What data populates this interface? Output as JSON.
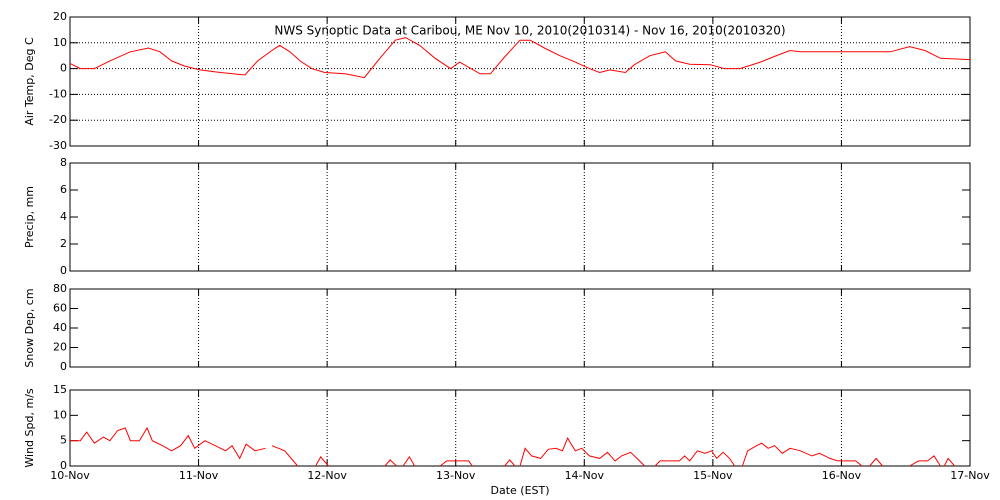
{
  "chart_data": [
    {
      "type": "line",
      "title": "NWS Synoptic Data at Caribou, ME    Nov 10, 2010(2010314) - Nov 16, 2010(2010320)",
      "ylabel": "Air Temp, Deg C",
      "xlim": [
        10,
        17
      ],
      "xticks": [
        10,
        11,
        12,
        13,
        14,
        15,
        16,
        17
      ],
      "ylim": [
        -30,
        20
      ],
      "yticks": [
        -30,
        -20,
        -10,
        0,
        10,
        20
      ],
      "xgrid": true,
      "ygrid": true,
      "series": [
        {
          "color": "#ff0000",
          "x": [
            10.0,
            10.08,
            10.19,
            10.31,
            10.47,
            10.61,
            10.7,
            10.79,
            10.89,
            11.01,
            11.17,
            11.36,
            11.46,
            11.57,
            11.63,
            11.71,
            11.79,
            11.88,
            11.98,
            12.14,
            12.29,
            12.41,
            12.53,
            12.61,
            12.72,
            12.84,
            12.96,
            13.03,
            13.19,
            13.27,
            13.38,
            13.5,
            13.58,
            13.69,
            13.81,
            13.93,
            14.04,
            14.12,
            14.2,
            14.32,
            14.39,
            14.51,
            14.63,
            14.71,
            14.82,
            14.98,
            15.09,
            15.21,
            15.37,
            15.52,
            15.6,
            15.68,
            15.79,
            16.14,
            16.38,
            16.53,
            16.65,
            16.77,
            17.0
          ],
          "values": [
            2,
            0,
            0,
            3,
            6.5,
            8,
            6.5,
            3,
            1,
            -0.5,
            -1.5,
            -2.5,
            3,
            7,
            9,
            6.5,
            3,
            0,
            -1.5,
            -2,
            -3.5,
            4,
            11,
            12,
            9,
            4,
            0,
            2.5,
            -2,
            -2,
            4.5,
            11,
            11,
            8,
            5,
            2.5,
            0,
            -1.5,
            -0.5,
            -1.5,
            1.5,
            5,
            6.5,
            3,
            1.7,
            1.5,
            0,
            0,
            2.5,
            5.5,
            7,
            6.5,
            6.5,
            6.5,
            6.5,
            8.5,
            7,
            4,
            3.5
          ]
        }
      ]
    },
    {
      "type": "line",
      "ylabel": "Precip, mm",
      "xlim": [
        10,
        17
      ],
      "xticks": [
        10,
        11,
        12,
        13,
        14,
        15,
        16,
        17
      ],
      "ylim": [
        0,
        8
      ],
      "yticks": [
        0,
        2,
        4,
        6,
        8
      ],
      "xgrid": true,
      "ygrid": false
    },
    {
      "type": "line",
      "ylabel": "Snow Dep, cm",
      "xlim": [
        10,
        17
      ],
      "xticks": [
        10,
        11,
        12,
        13,
        14,
        15,
        16,
        17
      ],
      "ylim": [
        0,
        80
      ],
      "yticks": [
        0,
        20,
        40,
        60,
        80
      ],
      "xgrid": true,
      "ygrid": false
    },
    {
      "type": "line",
      "ylabel": "Wind Spd, m/s",
      "xlabel": "Date (EST)",
      "xlim": [
        10,
        17
      ],
      "xticks": [
        {
          "value": 10,
          "label": "10-Nov"
        },
        {
          "value": 11,
          "label": "11-Nov"
        },
        {
          "value": 12,
          "label": "12-Nov"
        },
        {
          "value": 13,
          "label": "13-Nov"
        },
        {
          "value": 14,
          "label": "14-Nov"
        },
        {
          "value": 15,
          "label": "15-Nov"
        },
        {
          "value": 16,
          "label": "16-Nov"
        },
        {
          "value": 17,
          "label": "17-Nov"
        }
      ],
      "ylim": [
        0,
        15
      ],
      "yticks": [
        0,
        5,
        10,
        15
      ],
      "xgrid": true,
      "ygrid": false,
      "series": [
        {
          "color": "#ff0000",
          "x": [
            10.0,
            10.08,
            10.13,
            10.19,
            10.26,
            10.31,
            10.37,
            10.43,
            10.47,
            10.54,
            10.6,
            10.64,
            10.72,
            10.79,
            10.86,
            10.92,
            10.97,
            11.05,
            11.13,
            11.21,
            11.26,
            11.32,
            11.37,
            11.44,
            11.52,
            11.54,
            11.57,
            11.67,
            11.77,
            11.84,
            11.91,
            11.95,
            12.01,
            12.18,
            12.45,
            12.49,
            12.54,
            12.57,
            12.59,
            12.64,
            12.68,
            12.8,
            12.88,
            12.93,
            12.98,
            13.03,
            13.1,
            13.13,
            13.27,
            13.38,
            13.42,
            13.46,
            13.48,
            13.5,
            13.54,
            13.59,
            13.66,
            13.72,
            13.78,
            13.83,
            13.87,
            13.93,
            13.98,
            14.04,
            14.12,
            14.18,
            14.24,
            14.29,
            14.36,
            14.41,
            14.47,
            14.51,
            14.55,
            14.59,
            14.67,
            14.74,
            14.78,
            14.82,
            14.88,
            14.94,
            14.99,
            15.03,
            15.08,
            15.13,
            15.17,
            15.2,
            15.23,
            15.27,
            15.34,
            15.38,
            15.43,
            15.48,
            15.54,
            15.6,
            15.68,
            15.77,
            15.83,
            15.91,
            15.97,
            16.03,
            16.11,
            16.16,
            16.19,
            16.22,
            16.27,
            16.32,
            16.46,
            16.53,
            16.6,
            16.67,
            16.72,
            16.77,
            16.78,
            16.8,
            16.83,
            16.88
          ],
          "values": [
            5,
            5,
            6.7,
            4.5,
            5.7,
            5,
            7,
            7.5,
            5,
            5,
            7.5,
            5,
            4,
            3,
            4,
            6,
            3.5,
            5,
            4,
            3,
            4,
            1.5,
            4.3,
            3,
            3.5,
            null,
            4,
            3,
            0,
            null,
            0,
            1.8,
            0,
            null,
            0,
            1.2,
            0,
            null,
            0,
            1.8,
            0,
            null,
            0,
            1,
            1,
            1,
            1,
            0,
            null,
            0,
            1.2,
            0,
            null,
            0,
            3.5,
            2,
            1.5,
            3.3,
            3.5,
            3,
            5.5,
            3,
            3.5,
            2,
            1.5,
            2.7,
            1,
            2,
            2.7,
            1.5,
            0,
            null,
            0,
            1,
            1,
            1,
            2,
            1,
            3,
            2.5,
            3,
            1.5,
            2.7,
            1.5,
            0,
            null,
            0,
            3,
            4,
            4.5,
            3.5,
            4,
            2.5,
            3.5,
            3,
            2,
            2.5,
            1.5,
            1,
            1,
            1,
            0,
            null,
            0,
            1.5,
            0,
            null,
            0,
            1,
            1,
            2,
            0,
            null,
            0,
            1.5,
            0
          ]
        }
      ]
    }
  ]
}
